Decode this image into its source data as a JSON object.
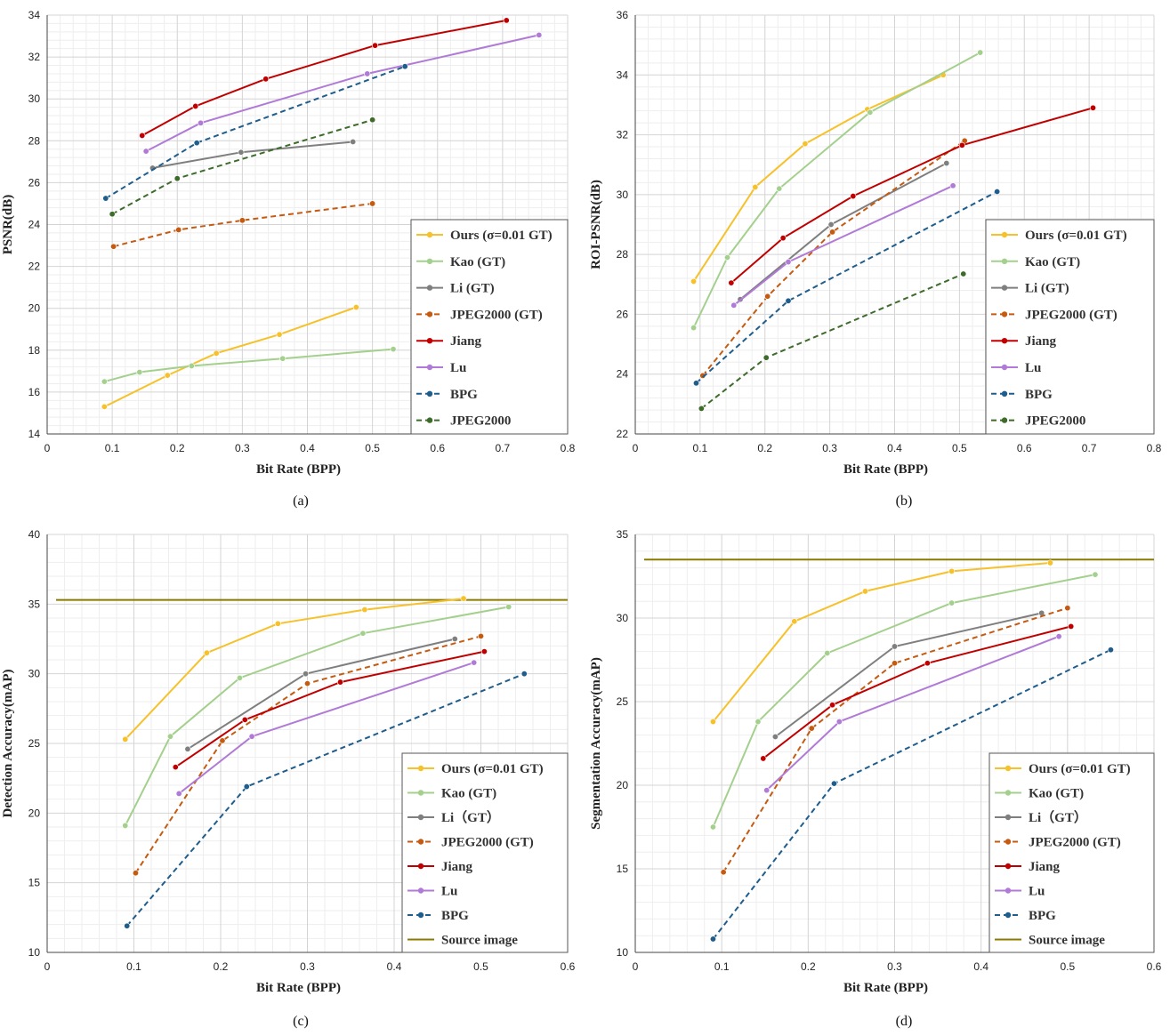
{
  "colors": {
    "ours": "#f6c12a",
    "kao": "#a4d08d",
    "li": "#7f7f7f",
    "jpeg2000gt": "#c55a11",
    "jiang": "#c00000",
    "lu": "#b07ad6",
    "bpg": "#1f5d8c",
    "jpeg2000": "#3d6b2a",
    "source": "#8a7a00"
  },
  "chart_data": [
    {
      "id": "a",
      "type": "line",
      "caption": "(a)",
      "xlabel": "Bit Rate (BPP)",
      "ylabel": "PSNR(dB)",
      "xlim": [
        0,
        0.8
      ],
      "ylim": [
        14,
        34
      ],
      "xticks": [
        "0",
        "0.1",
        "0.2",
        "0.3",
        "0.4",
        "0.5",
        "0.6",
        "0.7",
        "0.8"
      ],
      "yticks": [
        "14",
        "16",
        "18",
        "20",
        "22",
        "24",
        "26",
        "28",
        "30",
        "32",
        "34"
      ],
      "series": [
        {
          "name": "Ours (σ=0.01 GT)",
          "color_key": "ours",
          "dashed": false,
          "x": [
            0.088,
            0.185,
            0.26,
            0.357,
            0.475
          ],
          "y": [
            15.3,
            16.8,
            17.85,
            18.75,
            20.05
          ]
        },
        {
          "name": "Kao (GT)",
          "color_key": "kao",
          "dashed": false,
          "x": [
            0.088,
            0.142,
            0.222,
            0.362,
            0.532
          ],
          "y": [
            16.5,
            16.95,
            17.25,
            17.6,
            18.05
          ]
        },
        {
          "name": "Li (GT)",
          "color_key": "li",
          "dashed": false,
          "x": [
            0.162,
            0.298,
            0.47
          ],
          "y": [
            26.7,
            27.45,
            27.95
          ]
        },
        {
          "name": "JPEG2000 (GT)",
          "color_key": "jpeg2000gt",
          "dashed": true,
          "x": [
            0.102,
            0.202,
            0.3,
            0.5
          ],
          "y": [
            22.95,
            23.75,
            24.2,
            25.0
          ]
        },
        {
          "name": "Jiang",
          "color_key": "jiang",
          "dashed": false,
          "x": [
            0.146,
            0.228,
            0.336,
            0.504,
            0.706
          ],
          "y": [
            28.25,
            29.65,
            30.95,
            32.55,
            33.75
          ]
        },
        {
          "name": "Lu",
          "color_key": "lu",
          "dashed": false,
          "x": [
            0.152,
            0.236,
            0.492,
            0.756
          ],
          "y": [
            27.5,
            28.85,
            31.2,
            33.05
          ]
        },
        {
          "name": "BPG",
          "color_key": "bpg",
          "dashed": true,
          "x": [
            0.09,
            0.23,
            0.55
          ],
          "y": [
            25.25,
            27.9,
            31.55
          ]
        },
        {
          "name": "JPEG2000",
          "color_key": "jpeg2000",
          "dashed": true,
          "x": [
            0.1,
            0.2,
            0.5
          ],
          "y": [
            24.5,
            26.2,
            29.0
          ]
        }
      ]
    },
    {
      "id": "b",
      "type": "line",
      "caption": "(b)",
      "xlabel": "Bit Rate (BPP)",
      "ylabel": "ROI-PSNR(dB)",
      "xlim": [
        0,
        0.8
      ],
      "ylim": [
        22,
        36
      ],
      "xticks": [
        "0",
        "0.1",
        "0.2",
        "0.3",
        "0.4",
        "0.5",
        "0.6",
        "0.7",
        "0.8"
      ],
      "yticks": [
        "22",
        "24",
        "26",
        "28",
        "30",
        "32",
        "34",
        "36"
      ],
      "series": [
        {
          "name": "Ours (σ=0.01 GT)",
          "color_key": "ours",
          "dashed": false,
          "x": [
            0.09,
            0.185,
            0.262,
            0.358,
            0.475
          ],
          "y": [
            27.1,
            30.25,
            31.7,
            32.85,
            34.0
          ]
        },
        {
          "name": "Kao (GT)",
          "color_key": "kao",
          "dashed": false,
          "x": [
            0.09,
            0.142,
            0.222,
            0.362,
            0.532
          ],
          "y": [
            25.55,
            27.9,
            30.2,
            32.75,
            34.75
          ]
        },
        {
          "name": "Li (GT)",
          "color_key": "li",
          "dashed": false,
          "x": [
            0.162,
            0.302,
            0.48
          ],
          "y": [
            26.5,
            29.0,
            31.05
          ]
        },
        {
          "name": "JPEG2000 (GT)",
          "color_key": "jpeg2000gt",
          "dashed": true,
          "x": [
            0.104,
            0.204,
            0.304,
            0.508
          ],
          "y": [
            23.95,
            26.6,
            28.75,
            31.8
          ]
        },
        {
          "name": "Jiang",
          "color_key": "jiang",
          "dashed": false,
          "x": [
            0.148,
            0.228,
            0.336,
            0.504,
            0.706
          ],
          "y": [
            27.05,
            28.55,
            29.95,
            31.65,
            32.9
          ]
        },
        {
          "name": "Lu",
          "color_key": "lu",
          "dashed": false,
          "x": [
            0.152,
            0.236,
            0.49
          ],
          "y": [
            26.3,
            27.75,
            30.3
          ]
        },
        {
          "name": "BPG",
          "color_key": "bpg",
          "dashed": true,
          "x": [
            0.094,
            0.236,
            0.558
          ],
          "y": [
            23.7,
            26.45,
            30.1
          ]
        },
        {
          "name": "JPEG2000",
          "color_key": "jpeg2000",
          "dashed": true,
          "x": [
            0.102,
            0.202,
            0.506
          ],
          "y": [
            22.85,
            24.55,
            27.35
          ]
        }
      ]
    },
    {
      "id": "c",
      "type": "line",
      "caption": "(c)",
      "xlabel": "Bit Rate (BPP)",
      "ylabel": "Detection Accuracy(mAP)",
      "xlim": [
        0,
        0.6
      ],
      "ylim": [
        10,
        40
      ],
      "xticks": [
        "0",
        "0.1",
        "0.2",
        "0.3",
        "0.4",
        "0.5",
        "0.6"
      ],
      "yticks": [
        "10",
        "15",
        "20",
        "25",
        "30",
        "35",
        "40"
      ],
      "source_line": 35.3,
      "series": [
        {
          "name": "Ours (σ=0.01 GT)",
          "color_key": "ours",
          "dashed": false,
          "x": [
            0.09,
            0.184,
            0.266,
            0.366,
            0.48
          ],
          "y": [
            25.3,
            31.5,
            33.6,
            34.6,
            35.4
          ]
        },
        {
          "name": "Kao (GT)",
          "color_key": "kao",
          "dashed": false,
          "x": [
            0.09,
            0.142,
            0.222,
            0.364,
            0.532
          ],
          "y": [
            19.1,
            25.5,
            29.7,
            32.9,
            34.8
          ]
        },
        {
          "name": "Li（GT）",
          "color_key": "li",
          "dashed": false,
          "x": [
            0.162,
            0.298,
            0.47
          ],
          "y": [
            24.6,
            30.0,
            32.5
          ]
        },
        {
          "name": "JPEG2000 (GT)",
          "color_key": "jpeg2000gt",
          "dashed": true,
          "x": [
            0.102,
            0.202,
            0.3,
            0.5
          ],
          "y": [
            15.7,
            25.2,
            29.3,
            32.7
          ]
        },
        {
          "name": "Jiang",
          "color_key": "jiang",
          "dashed": false,
          "x": [
            0.148,
            0.228,
            0.338,
            0.504
          ],
          "y": [
            23.3,
            26.7,
            29.4,
            31.6
          ]
        },
        {
          "name": "Lu",
          "color_key": "lu",
          "dashed": false,
          "x": [
            0.152,
            0.236,
            0.492
          ],
          "y": [
            21.4,
            25.5,
            30.8
          ]
        },
        {
          "name": "BPG",
          "color_key": "bpg",
          "dashed": true,
          "x": [
            0.092,
            0.23,
            0.55
          ],
          "y": [
            11.9,
            21.9,
            30.0
          ]
        },
        {
          "name": "Source image",
          "color_key": "source",
          "dashed": false,
          "legend_only": true,
          "x": [],
          "y": []
        }
      ]
    },
    {
      "id": "d",
      "type": "line",
      "caption": "(d)",
      "xlabel": "Bit Rate (BPP)",
      "ylabel": "Segmentation Accuracy(mAP)",
      "xlim": [
        0,
        0.6
      ],
      "ylim": [
        10,
        35
      ],
      "xticks": [
        "0",
        "0.1",
        "0.2",
        "0.3",
        "0.4",
        "0.5",
        "0.6"
      ],
      "yticks": [
        "10",
        "15",
        "20",
        "25",
        "30",
        "35"
      ],
      "source_line": 33.5,
      "series": [
        {
          "name": "Ours (σ=0.01 GT)",
          "color_key": "ours",
          "dashed": false,
          "x": [
            0.09,
            0.184,
            0.266,
            0.366,
            0.48
          ],
          "y": [
            23.8,
            29.8,
            31.6,
            32.8,
            33.3
          ]
        },
        {
          "name": "Kao (GT)",
          "color_key": "kao",
          "dashed": false,
          "x": [
            0.09,
            0.142,
            0.222,
            0.366,
            0.532
          ],
          "y": [
            17.5,
            23.8,
            27.9,
            30.9,
            32.6
          ]
        },
        {
          "name": "Li（GT）",
          "color_key": "li",
          "dashed": false,
          "x": [
            0.162,
            0.3,
            0.47
          ],
          "y": [
            22.9,
            28.3,
            30.3
          ]
        },
        {
          "name": "JPEG2000 (GT)",
          "color_key": "jpeg2000gt",
          "dashed": true,
          "x": [
            0.102,
            0.204,
            0.3,
            0.5
          ],
          "y": [
            14.8,
            23.4,
            27.3,
            30.6
          ]
        },
        {
          "name": "Jiang",
          "color_key": "jiang",
          "dashed": false,
          "x": [
            0.148,
            0.228,
            0.338,
            0.504
          ],
          "y": [
            21.6,
            24.8,
            27.3,
            29.5
          ]
        },
        {
          "name": "Lu",
          "color_key": "lu",
          "dashed": false,
          "x": [
            0.152,
            0.236,
            0.49
          ],
          "y": [
            19.7,
            23.8,
            28.9
          ]
        },
        {
          "name": "BPG",
          "color_key": "bpg",
          "dashed": true,
          "x": [
            0.09,
            0.23,
            0.55
          ],
          "y": [
            10.8,
            20.1,
            28.1
          ]
        },
        {
          "name": "Source image",
          "color_key": "source",
          "dashed": false,
          "legend_only": true,
          "x": [],
          "y": []
        }
      ]
    }
  ]
}
